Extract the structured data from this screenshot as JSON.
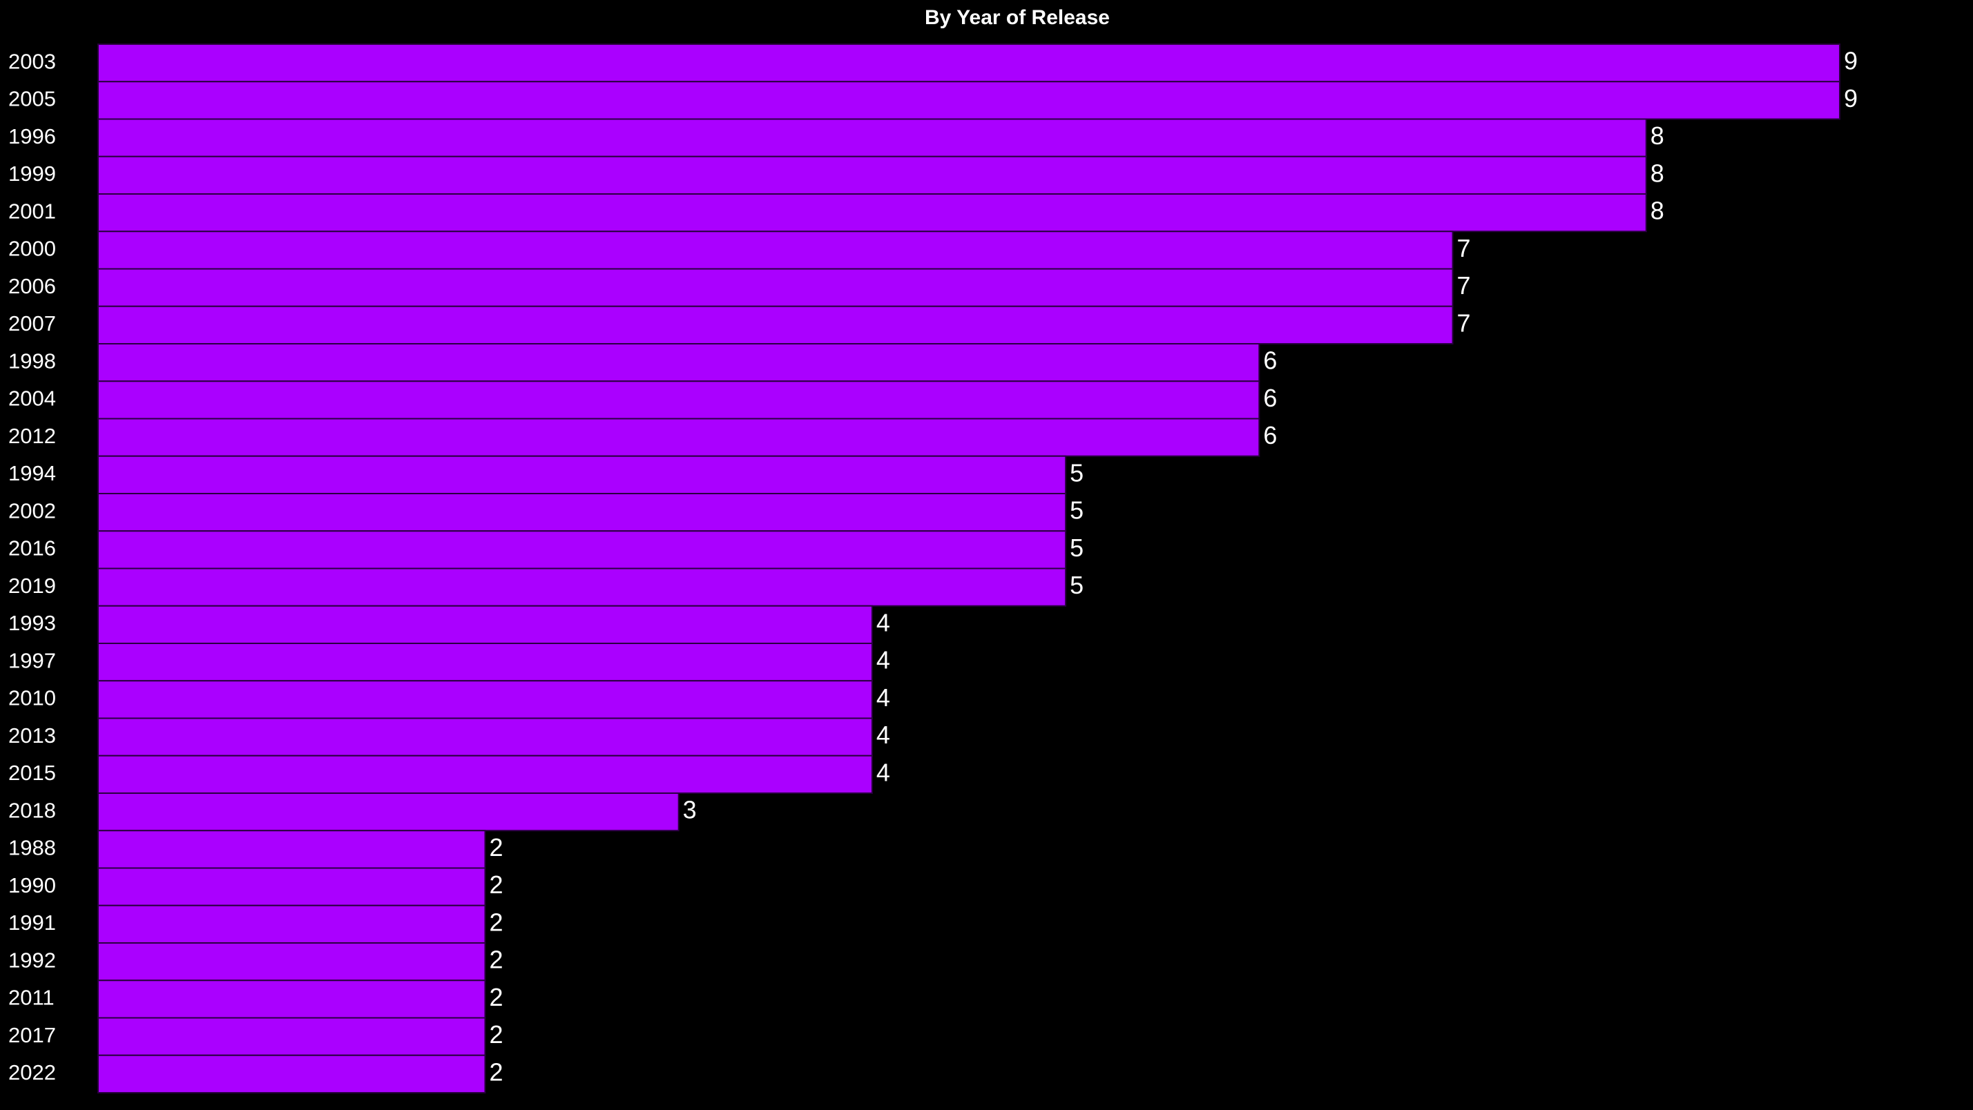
{
  "chart_data": {
    "type": "bar",
    "orientation": "horizontal",
    "title": "By Year of Release",
    "categories": [
      "2003",
      "2005",
      "1996",
      "1999",
      "2001",
      "2000",
      "2006",
      "2007",
      "1998",
      "2004",
      "2012",
      "1994",
      "2002",
      "2016",
      "2019",
      "1993",
      "1997",
      "2010",
      "2013",
      "2015",
      "2018",
      "1988",
      "1990",
      "1991",
      "1992",
      "2011",
      "2017",
      "2022"
    ],
    "values": [
      9,
      9,
      8,
      8,
      8,
      7,
      7,
      7,
      6,
      6,
      6,
      5,
      5,
      5,
      5,
      4,
      4,
      4,
      4,
      4,
      3,
      2,
      2,
      2,
      2,
      2,
      2,
      2
    ],
    "color": "#aa00ff"
  }
}
